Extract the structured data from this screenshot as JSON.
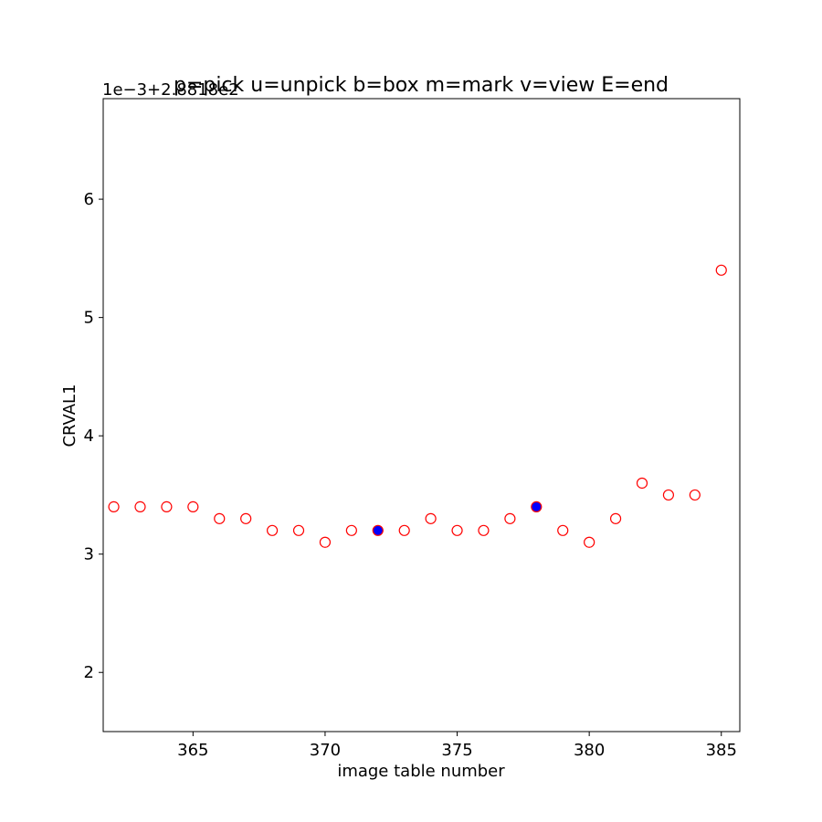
{
  "chart_data": {
    "type": "scatter",
    "title": "p=pick u=unpick b=box m=mark v=view E=end",
    "xlabel": "image table number",
    "ylabel": "CRVAL1",
    "offset_text": "1e−3+2.8818e2",
    "xlim": [
      361.6,
      385.7
    ],
    "ylim": [
      1.5,
      6.85
    ],
    "xticks": [
      365,
      370,
      375,
      380,
      385
    ],
    "yticks": [
      2,
      3,
      4,
      5,
      6
    ],
    "grid": false,
    "series": [
      {
        "marker": "open-circle",
        "edge_color": "#ff0000",
        "x": [
          362,
          363,
          364,
          365,
          366,
          367,
          368,
          369,
          370,
          371,
          373,
          374,
          375,
          376,
          377,
          379,
          380,
          381,
          382,
          383,
          384,
          385
        ],
        "y": [
          3.4,
          3.4,
          3.4,
          3.4,
          3.3,
          3.3,
          3.2,
          3.2,
          3.1,
          3.2,
          3.2,
          3.3,
          3.2,
          3.2,
          3.3,
          3.2,
          3.1,
          3.3,
          3.6,
          3.5,
          3.5,
          5.4
        ]
      },
      {
        "marker": "filled-circle",
        "face_color": "#0000ff",
        "edge_color": "#ff0000",
        "x": [
          372,
          378
        ],
        "y": [
          3.2,
          3.4
        ]
      }
    ]
  }
}
